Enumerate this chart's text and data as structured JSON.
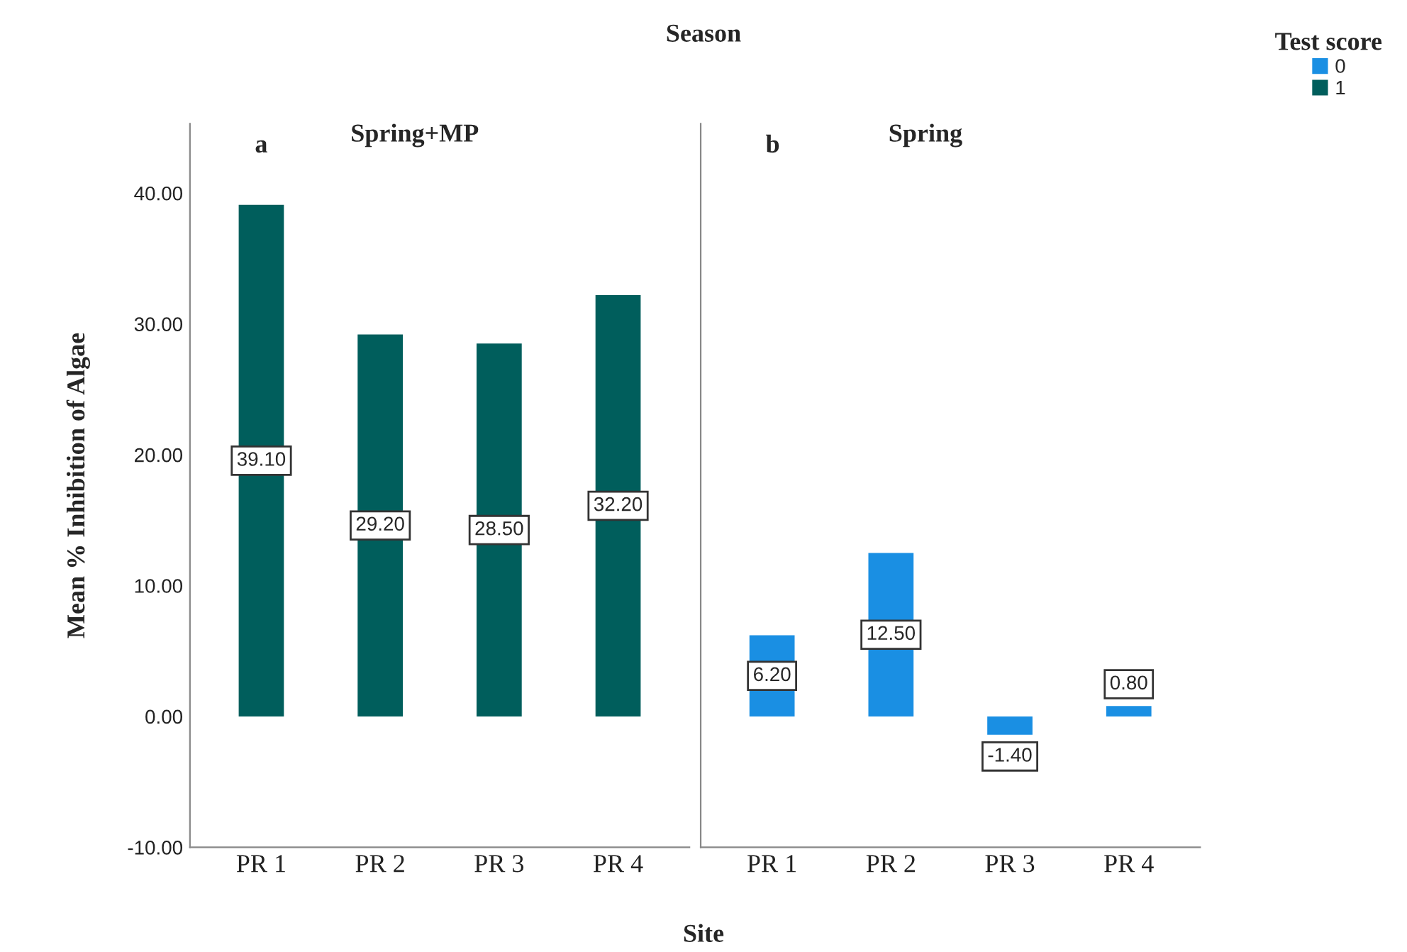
{
  "chart_data": [
    {
      "type": "bar",
      "title": "Spring+MP",
      "subtitle": "Season",
      "xlabel": "Site",
      "ylabel": "Mean % Inhibition of Algae",
      "annotations": [
        "a"
      ],
      "categories": [
        "PR 1",
        "PR 2",
        "PR 3",
        "PR 4"
      ],
      "series": [
        {
          "name": "1",
          "color": "#005e5c",
          "values": [
            39.1,
            29.2,
            28.5,
            32.2
          ]
        }
      ],
      "value_labels": [
        "39.10",
        "29.20",
        "28.50",
        "32.20"
      ],
      "ylim": [
        -10,
        45.3
      ],
      "yticks": [
        {
          "value": -10,
          "label": "-10.00"
        },
        {
          "value": 0,
          "label": "0.00"
        },
        {
          "value": 10,
          "label": "10.00"
        },
        {
          "value": 20,
          "label": "20.00"
        },
        {
          "value": 30,
          "label": "30.00"
        },
        {
          "value": 40,
          "label": "40.00"
        }
      ],
      "grid": false
    },
    {
      "type": "bar",
      "title": "Spring",
      "annotations": [
        "b"
      ],
      "categories": [
        "PR 1",
        "PR 2",
        "PR 3",
        "PR 4"
      ],
      "series": [
        {
          "name": "0",
          "color": "#1a8fe3",
          "values": [
            6.2,
            12.5,
            -1.4,
            0.8
          ]
        }
      ],
      "value_labels": [
        "6.20",
        "12.50",
        "-1.40",
        "0.80"
      ],
      "ylim": [
        -10,
        45.3
      ],
      "tick_labels": "x",
      "grid": false,
      "legend": "top right",
      "legend_title": "Test score"
    }
  ]
}
